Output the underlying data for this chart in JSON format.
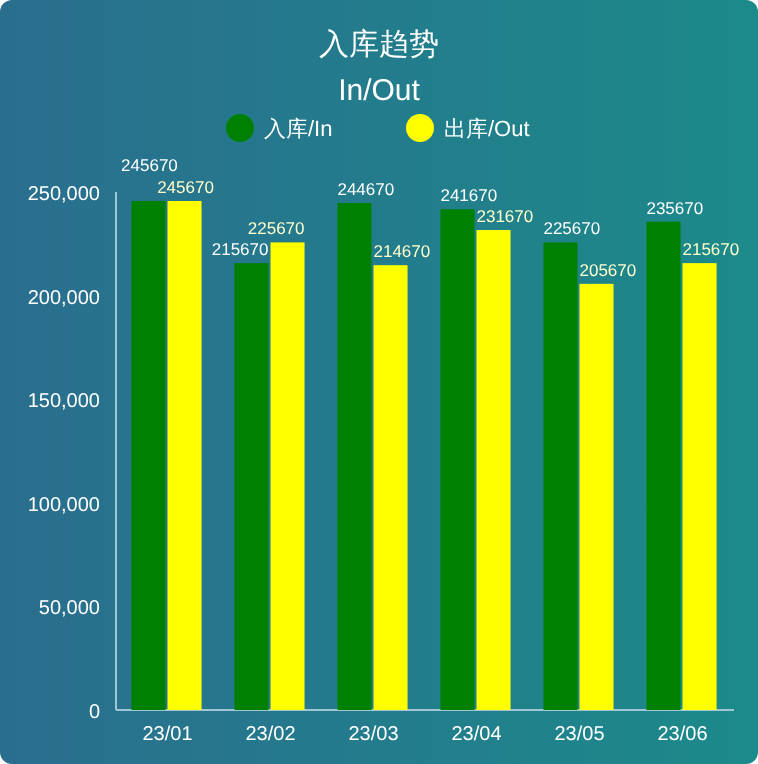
{
  "chart_data": {
    "type": "bar",
    "title": "入库趋势",
    "subtitle": "In/Out",
    "categories": [
      "23/01",
      "23/02",
      "23/03",
      "23/04",
      "23/05",
      "23/06"
    ],
    "series": [
      {
        "name": "入库/In",
        "color": "#008000",
        "values": [
          245670,
          215670,
          244670,
          241670,
          225670,
          235670
        ]
      },
      {
        "name": "出库/Out",
        "color": "#ffff00",
        "values": [
          245670,
          225670,
          214670,
          231670,
          205670,
          215670
        ]
      }
    ],
    "ylim": [
      0,
      250000
    ],
    "yticks": [
      {
        "value": 0,
        "label": "0"
      },
      {
        "value": 50000,
        "label": "50,000"
      },
      {
        "value": 100000,
        "label": "100,000"
      },
      {
        "value": 150000,
        "label": "150,000"
      },
      {
        "value": 200000,
        "label": "200,000"
      },
      {
        "value": 250000,
        "label": "250,000"
      }
    ],
    "data_labels": true,
    "legend": "top",
    "grid": false
  }
}
